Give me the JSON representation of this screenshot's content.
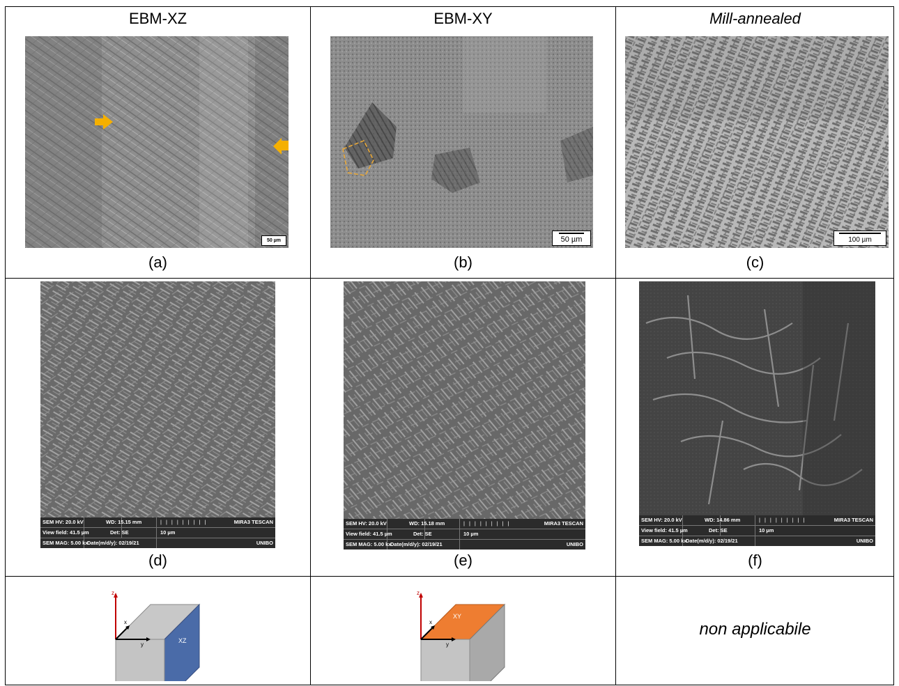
{
  "headers": [
    {
      "label": "EBM-XZ",
      "italic": false
    },
    {
      "label": "EBM-XY",
      "italic": false
    },
    {
      "label": "Mill-annealed",
      "italic": true
    }
  ],
  "captions": [
    "(a)",
    "(b)",
    "(c)",
    "(d)",
    "(e)",
    "(f)"
  ],
  "optical": {
    "a": {
      "scale": "50 µm"
    },
    "b": {
      "scale": "50 µm"
    },
    "c": {
      "scale": "100 µm"
    }
  },
  "sem": {
    "d": {
      "hv": "SEM HV: 20.0 kV",
      "wd": "WD: 15.15 mm",
      "brand": "MIRA3 TESCAN",
      "view": "View field: 41.5 µm",
      "det": "Det: SE",
      "scale": "10 µm",
      "mag": "SEM MAG: 5.00 kx",
      "date": "Date(m/d/y): 02/19/21",
      "org": "UNIBO"
    },
    "e": {
      "hv": "SEM HV: 20.0 kV",
      "wd": "WD: 15.18 mm",
      "brand": "MIRA3 TESCAN",
      "view": "View field: 41.5 µm",
      "det": "Det: SE",
      "scale": "10 µm",
      "mag": "SEM MAG: 5.00 kx",
      "date": "Date(m/d/y): 02/19/21",
      "org": "UNIBO"
    },
    "f": {
      "hv": "SEM HV: 20.0 kV",
      "wd": "WD: 14.86 mm",
      "brand": "MIRA3 TESCAN",
      "view": "View field: 41.5 µm",
      "det": "Det: SE",
      "scale": "10 µm",
      "mag": "SEM MAG: 5.00 kx",
      "date": "Date(m/d/y): 02/19/21",
      "org": "UNIBO"
    }
  },
  "diagrams": {
    "xz": {
      "axis_z": "z",
      "axis_x": "x",
      "axis_y": "y",
      "face": "XZ",
      "face_color": "#4a6ba8"
    },
    "xy": {
      "axis_z": "z",
      "axis_x": "x",
      "axis_y": "y",
      "face": "XY",
      "face_color": "#ee7d31"
    }
  },
  "not_applicable": "non applicabile",
  "colors": {
    "arrow": "#f5b000",
    "box_outline": "#e8a83a",
    "axis": "#c00000"
  }
}
